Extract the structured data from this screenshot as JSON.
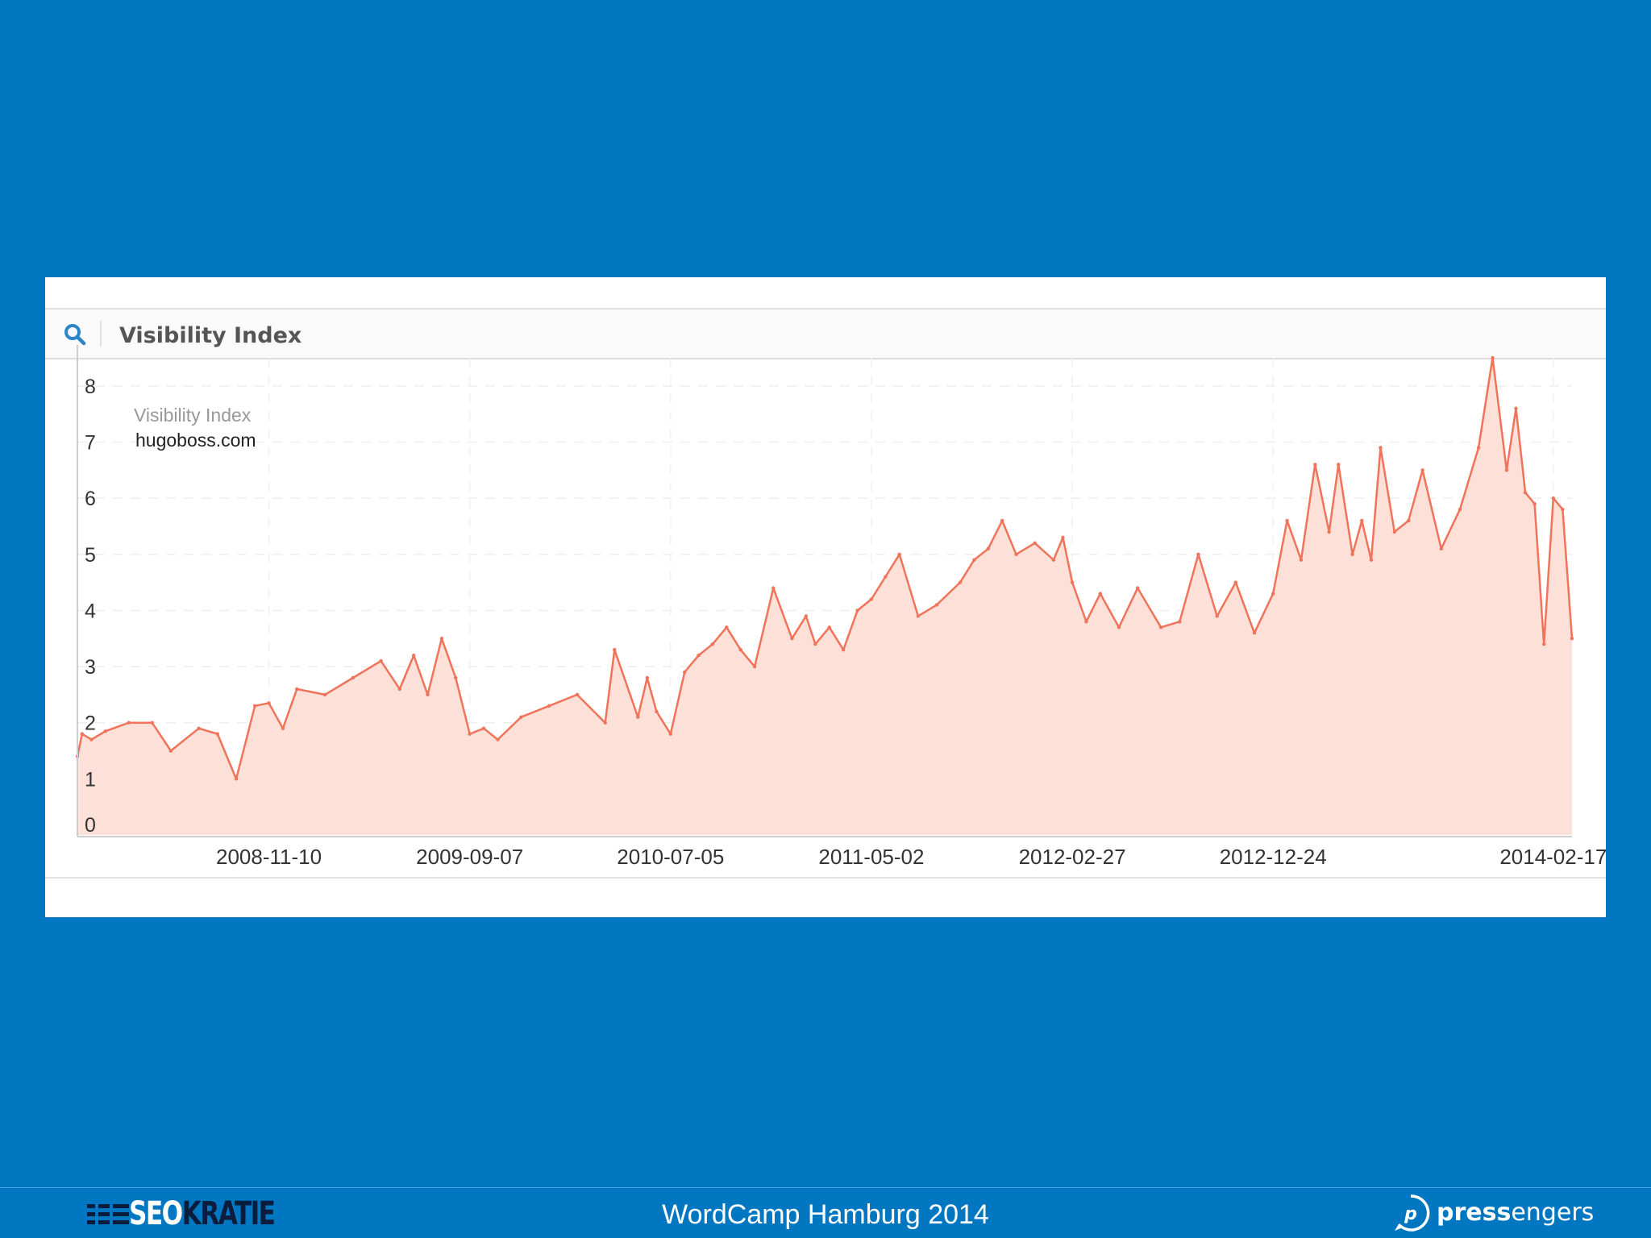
{
  "panel": {
    "title": "Visibility Index",
    "icon": "search-icon"
  },
  "chart_data": {
    "type": "area",
    "legend_title": "Visibility Index",
    "series": [
      {
        "name": "hugoboss.com",
        "color": "#f0735a",
        "fill": "#fde0d8"
      }
    ],
    "x_ticks": [
      "2008-11-10",
      "2009-09-07",
      "2010-07-05",
      "2011-05-02",
      "2012-02-27",
      "2012-12-24",
      "2014-02-17"
    ],
    "y_ticks": [
      0,
      1,
      2,
      3,
      4,
      5,
      6,
      7,
      8
    ],
    "ylim": [
      0,
      8.5
    ],
    "xlim": [
      "2008-01-28",
      "2014-03-17"
    ],
    "grid": true,
    "legend_position": "top-left",
    "x": [
      "2008-01-28",
      "2008-02-04",
      "2008-02-18",
      "2008-03-10",
      "2008-04-14",
      "2008-05-19",
      "2008-06-16",
      "2008-07-28",
      "2008-08-25",
      "2008-09-22",
      "2008-10-20",
      "2008-11-10",
      "2008-12-01",
      "2008-12-22",
      "2009-02-02",
      "2009-03-16",
      "2009-04-27",
      "2009-05-25",
      "2009-06-15",
      "2009-07-06",
      "2009-07-27",
      "2009-08-17",
      "2009-09-07",
      "2009-09-28",
      "2009-10-19",
      "2009-11-23",
      "2010-01-04",
      "2010-02-15",
      "2010-03-29",
      "2010-04-12",
      "2010-05-17",
      "2010-05-31",
      "2010-06-14",
      "2010-07-05",
      "2010-07-26",
      "2010-08-16",
      "2010-09-06",
      "2010-09-27",
      "2010-10-18",
      "2010-11-08",
      "2010-12-06",
      "2011-01-03",
      "2011-01-24",
      "2011-02-07",
      "2011-02-28",
      "2011-03-21",
      "2011-04-11",
      "2011-05-02",
      "2011-05-23",
      "2011-06-13",
      "2011-07-11",
      "2011-08-08",
      "2011-09-12",
      "2011-10-03",
      "2011-10-24",
      "2011-11-14",
      "2011-12-05",
      "2012-01-02",
      "2012-01-30",
      "2012-02-13",
      "2012-02-27",
      "2012-03-19",
      "2012-04-09",
      "2012-05-07",
      "2012-06-04",
      "2012-07-09",
      "2012-08-06",
      "2012-09-03",
      "2012-10-01",
      "2012-10-29",
      "2012-11-26",
      "2012-12-24",
      "2013-01-14",
      "2013-02-04",
      "2013-02-25",
      "2013-03-18",
      "2013-04-01",
      "2013-04-22",
      "2013-05-06",
      "2013-05-20",
      "2013-06-03",
      "2013-06-24",
      "2013-07-15",
      "2013-08-05",
      "2013-09-02",
      "2013-09-30",
      "2013-10-28",
      "2013-11-18",
      "2013-12-09",
      "2013-12-23",
      "2014-01-06",
      "2014-01-20",
      "2014-02-03",
      "2014-02-17",
      "2014-03-03",
      "2014-03-17"
    ],
    "values": [
      1.4,
      1.8,
      1.7,
      1.85,
      2.0,
      2.0,
      1.5,
      1.9,
      1.8,
      1.0,
      2.3,
      2.35,
      1.9,
      2.6,
      2.5,
      2.8,
      3.1,
      2.6,
      3.2,
      2.5,
      3.5,
      2.8,
      1.8,
      1.9,
      1.7,
      2.1,
      2.3,
      2.5,
      2.0,
      3.3,
      2.1,
      2.8,
      2.2,
      1.8,
      2.9,
      3.2,
      3.4,
      3.7,
      3.3,
      3.0,
      4.4,
      3.5,
      3.9,
      3.4,
      3.7,
      3.3,
      4.0,
      4.2,
      4.6,
      5.0,
      3.9,
      4.1,
      4.5,
      4.9,
      5.1,
      5.6,
      5.0,
      5.2,
      4.9,
      5.3,
      4.5,
      3.8,
      4.3,
      3.7,
      4.4,
      3.7,
      3.8,
      5.0,
      3.9,
      4.5,
      3.6,
      4.3,
      5.6,
      4.9,
      6.6,
      5.4,
      6.6,
      5.0,
      5.6,
      4.9,
      6.9,
      5.4,
      5.6,
      6.5,
      5.1,
      5.8,
      6.9,
      8.5,
      6.5,
      7.6,
      6.1,
      5.9,
      3.4,
      6.0,
      5.8,
      3.5
    ]
  },
  "footer": {
    "left_logo": "SEOKRATIE",
    "event": "WordCamp Hamburg 2014",
    "right_logo": "pressengers"
  }
}
